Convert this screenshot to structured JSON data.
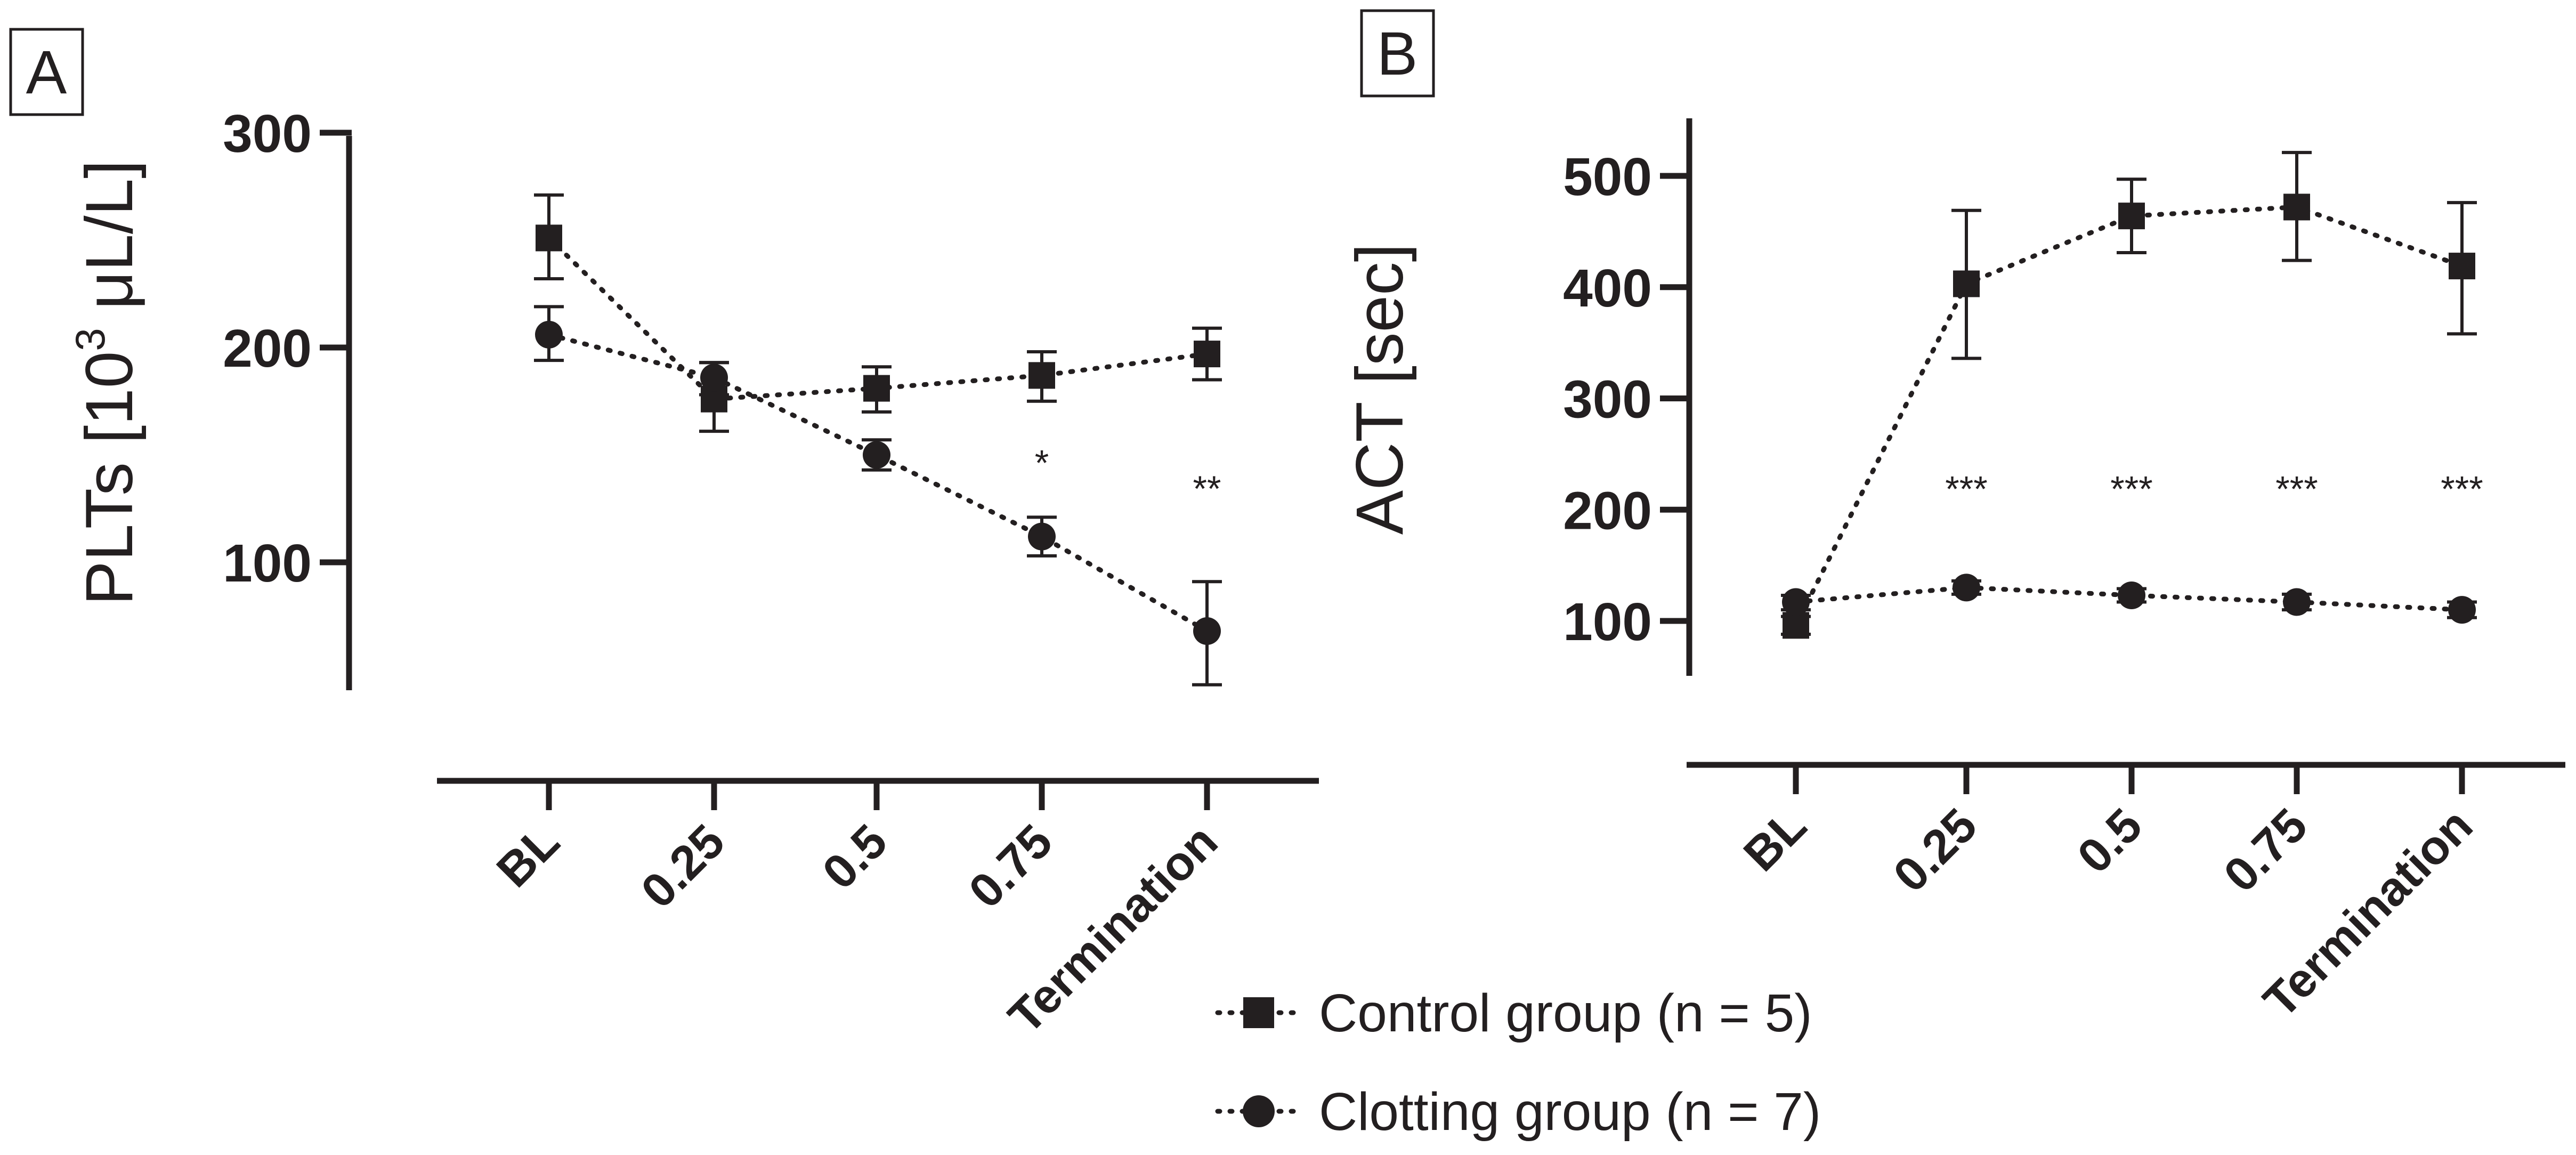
{
  "legend": [
    {
      "label": "Control group (n = 5)",
      "marker": "square"
    },
    {
      "label": "Clotting group (n = 7)",
      "marker": "circle"
    }
  ],
  "chart_data": [
    {
      "panel": "A",
      "type": "line",
      "categories": [
        "BL",
        "0.25",
        "0.5",
        "0.75",
        "Termination"
      ],
      "ylabel_main": "PLTs [10",
      "ylabel_sup": "3",
      "ylabel_tail": " μL/L]",
      "xlabel": "",
      "ylim": [
        40,
        300
      ],
      "yticks": [
        100,
        200,
        300
      ],
      "series": [
        {
          "name": "Control group (n = 5)",
          "marker": "square",
          "values": [
            251,
            176,
            181,
            187,
            197
          ],
          "err_lo": [
            232,
            161,
            170,
            175,
            185
          ],
          "err_hi": [
            271,
            193,
            191,
            198,
            209
          ]
        },
        {
          "name": "Clotting group (n = 7)",
          "marker": "circle",
          "values": [
            206,
            186,
            150,
            112,
            68
          ],
          "err_lo": [
            194,
            178,
            143,
            103,
            43
          ],
          "err_hi": [
            219,
            193,
            157,
            121,
            91
          ]
        }
      ],
      "annotations": [
        {
          "category": "0.75",
          "text": "*",
          "y": 148
        },
        {
          "category": "Termination",
          "text": "**",
          "y": 136
        }
      ]
    },
    {
      "panel": "B",
      "type": "line",
      "categories": [
        "BL",
        "0.25",
        "0.5",
        "0.75",
        "Termination"
      ],
      "ylabel": "ACT [sec]",
      "xlabel": "",
      "ylim": [
        50,
        550
      ],
      "yticks": [
        100,
        200,
        300,
        400,
        500
      ],
      "series": [
        {
          "name": "Control group (n = 5)",
          "marker": "square",
          "values": [
            96,
            403,
            464,
            472,
            419
          ],
          "err_lo": [
            88,
            336,
            431,
            424,
            358
          ],
          "err_hi": [
            104,
            469,
            497,
            521,
            476
          ]
        },
        {
          "name": "Clotting group (n = 7)",
          "marker": "circle",
          "values": [
            117,
            130,
            123,
            117,
            110
          ],
          "err_lo": [
            110,
            124,
            117,
            110,
            103
          ],
          "err_hi": [
            123,
            136,
            129,
            124,
            117
          ]
        }
      ],
      "annotations": [
        {
          "category": "0.25",
          "text": "***",
          "y": 222
        },
        {
          "category": "0.5",
          "text": "***",
          "y": 222
        },
        {
          "category": "0.75",
          "text": "***",
          "y": 222
        },
        {
          "category": "Termination",
          "text": "***",
          "y": 222
        }
      ]
    }
  ]
}
